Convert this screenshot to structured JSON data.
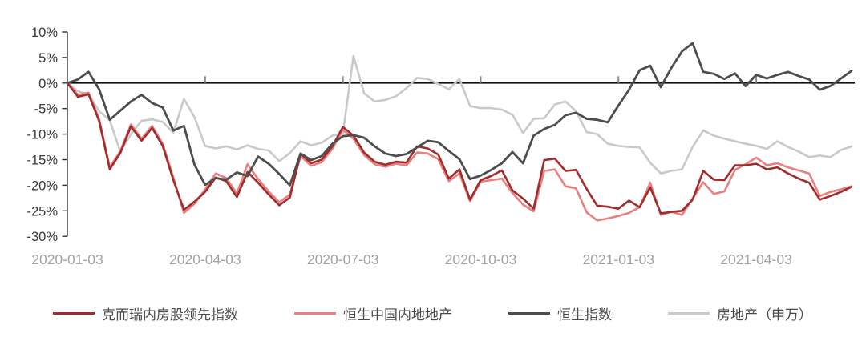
{
  "chart_data": {
    "type": "line",
    "title": "",
    "xlabel": "",
    "ylabel": "",
    "grid": false,
    "legend_position": "bottom",
    "y_axis": {
      "unit": "%",
      "min": -30,
      "max": 10,
      "tick_values": [
        10,
        5,
        0,
        -5,
        -10,
        -15,
        -20,
        -25,
        -30
      ],
      "tick_labels": [
        "10%",
        "5%",
        "0%",
        "-5%",
        "-10%",
        "-15%",
        "-20%",
        "-25%",
        "-30%"
      ]
    },
    "x_axis": {
      "tick_labels": [
        "2020-01-03",
        "2020-04-03",
        "2020-07-03",
        "2020-10-03",
        "2021-01-03",
        "2021-04-03"
      ],
      "tick_weeks": [
        0,
        13,
        26,
        39,
        52,
        65
      ],
      "total_weeks": 75,
      "note": "weekly cumulative return since 2020-01-03"
    },
    "series": [
      {
        "name": "克而瑞内房股领先指数",
        "color": "#a22c2c",
        "values": [
          0,
          -2.7,
          -2.2,
          -7.4,
          -16.9,
          -13.7,
          -8.5,
          -11.3,
          -8.8,
          -12.3,
          -19,
          -24.8,
          -23.2,
          -21.3,
          -18.5,
          -19.2,
          -22.3,
          -17.4,
          -19.5,
          -21.8,
          -23.9,
          -22.4,
          -13.8,
          -15.7,
          -15,
          -12.4,
          -8.6,
          -10.3,
          -13.6,
          -15.4,
          -16,
          -15.4,
          -15.6,
          -12.4,
          -12.8,
          -14,
          -18.7,
          -16.9,
          -22.8,
          -19,
          -18.2,
          -17.1,
          -21,
          -22.6,
          -24.6,
          -15.1,
          -14.8,
          -17.2,
          -17,
          -20.7,
          -24,
          -24.2,
          -24.6,
          -23,
          -24.3,
          -20.4,
          -25.5,
          -25.2,
          -25,
          -22.8,
          -17.2,
          -18.9,
          -19,
          -16.1,
          -16.1,
          -15.8,
          -16.9,
          -16.5,
          -17.7,
          -18.7,
          -19.5,
          -22.8,
          -22.1,
          -21.3,
          -20.3
        ]
      },
      {
        "name": "恒生中国内地地产",
        "color": "#e88080",
        "values": [
          0,
          -2.3,
          -1.9,
          -7,
          -16.5,
          -13.3,
          -8.1,
          -10.9,
          -8.4,
          -11.9,
          -18.5,
          -25.4,
          -23.6,
          -20.8,
          -17.7,
          -18.6,
          -21.6,
          -15.9,
          -18.8,
          -21.2,
          -23.3,
          -21.8,
          -14.3,
          -16.2,
          -15.5,
          -12.9,
          -9.2,
          -10.9,
          -14.1,
          -15.9,
          -16.4,
          -15.8,
          -16.1,
          -13.6,
          -13.8,
          -14.9,
          -19.2,
          -17.7,
          -23.1,
          -19.3,
          -19,
          -18.7,
          -21.5,
          -23.8,
          -25.1,
          -17.2,
          -16.9,
          -20.2,
          -20.6,
          -25.3,
          -26.9,
          -26.5,
          -26,
          -25.4,
          -24.3,
          -19.5,
          -25.8,
          -25.2,
          -25.8,
          -22.6,
          -19.4,
          -21.7,
          -21.2,
          -17,
          -15.9,
          -14.6,
          -16.1,
          -15.7,
          -16.5,
          -17.1,
          -17.7,
          -22.1,
          -21.3,
          -20.8,
          -20.2
        ]
      },
      {
        "name": "恒生指数",
        "color": "#4d4d4d",
        "values": [
          0,
          0.7,
          2.2,
          -1.2,
          -7.2,
          -5.4,
          -3.6,
          -2.3,
          -3.9,
          -4.8,
          -9.3,
          -8.4,
          -16,
          -19.9,
          -18.6,
          -18.9,
          -17.5,
          -18.2,
          -14.4,
          -15.8,
          -17.8,
          -20,
          -13.8,
          -15.1,
          -14.3,
          -11.9,
          -10.4,
          -10.2,
          -10.7,
          -12.4,
          -13.8,
          -14.3,
          -13.9,
          -12.6,
          -11.3,
          -11.6,
          -13.3,
          -14.9,
          -18.8,
          -18.1,
          -17,
          -15.7,
          -13.5,
          -15.7,
          -10.3,
          -9,
          -8.2,
          -6.3,
          -5.8,
          -7,
          -7.2,
          -7.7,
          -4.4,
          -1.3,
          2.5,
          3.4,
          -0.8,
          3,
          6.2,
          7.8,
          2.2,
          1.8,
          0.8,
          1.9,
          -0.6,
          1.6,
          0.9,
          1.6,
          2.2,
          1.4,
          0.7,
          -1.3,
          -0.6,
          0.9,
          2.4
        ]
      },
      {
        "name": "房地产（申万）",
        "color": "#c9c9c9",
        "values": [
          0,
          -1.6,
          -2.2,
          -5.5,
          -7.3,
          -13.5,
          -10,
          -7.4,
          -7.1,
          -7.6,
          -9.7,
          -3.1,
          -6.7,
          -12.3,
          -12.8,
          -12.4,
          -13,
          -12.2,
          -12.9,
          -13.2,
          -15.3,
          -13.7,
          -11.4,
          -12.2,
          -11.7,
          -10.3,
          -9.9,
          5.3,
          -2,
          -3.6,
          -3.3,
          -2.6,
          -1,
          1,
          0.8,
          -0.2,
          -1.2,
          0.8,
          -4.5,
          -4.9,
          -4.9,
          -5.2,
          -6.2,
          -9.8,
          -7,
          -6.9,
          -4.2,
          -3.6,
          -5.5,
          -9.6,
          -10,
          -11.9,
          -12.3,
          -12.5,
          -12.6,
          -15.6,
          -17.7,
          -17.2,
          -16.9,
          -12.5,
          -9.3,
          -10.3,
          -10.9,
          -11.4,
          -11.9,
          -12.3,
          -12.9,
          -11.4,
          -12.5,
          -13.4,
          -14.5,
          -14.2,
          -14.5,
          -13.1,
          -12.4
        ]
      }
    ],
    "draw_order": [
      3,
      1,
      0,
      2
    ],
    "axis_colors": {
      "spine": "#333333",
      "zero_line": "#111111",
      "x_tick": "#8a8a8a"
    }
  },
  "legend": {
    "items": [
      {
        "label": "克而瑞内房股领先指数"
      },
      {
        "label": "恒生中国内地地产"
      },
      {
        "label": "恒生指数"
      },
      {
        "label": "房地产（申万）"
      }
    ]
  }
}
